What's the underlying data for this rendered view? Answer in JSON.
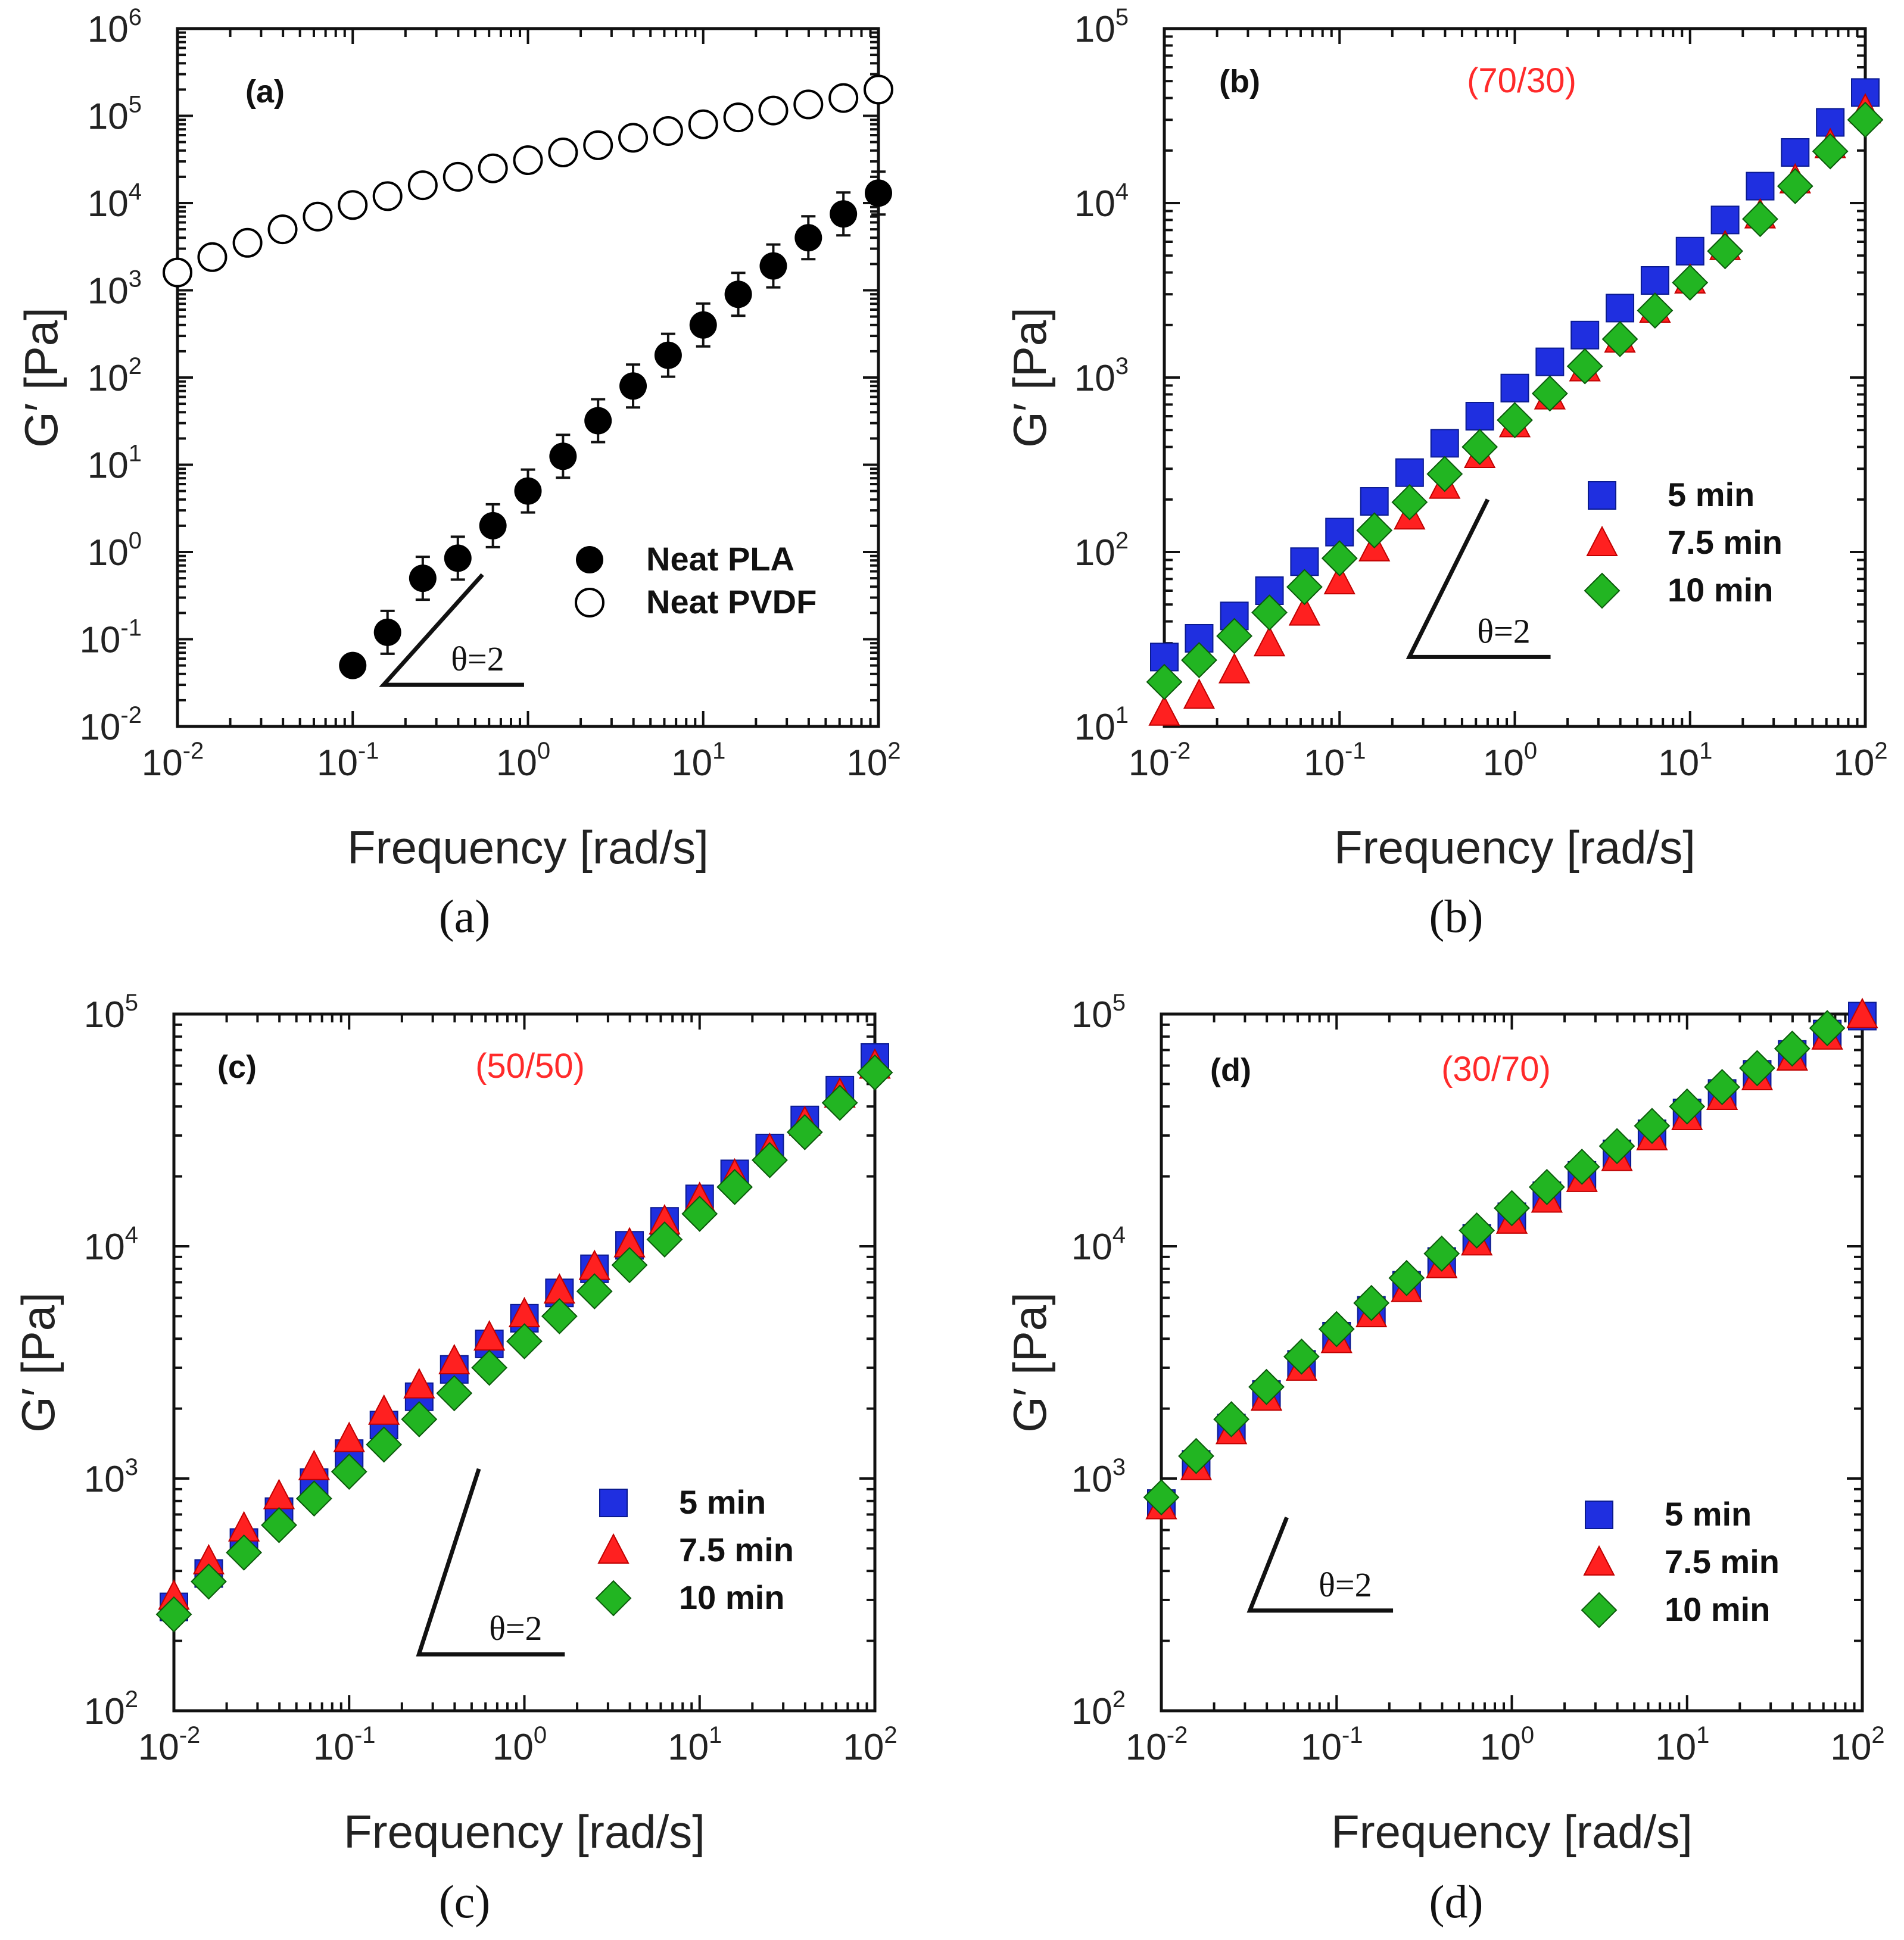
{
  "chart_data": [
    {
      "panel": "a",
      "type": "scatter",
      "panel_tag": "(a)",
      "caption": "(a)",
      "blend_label": "",
      "xlabel": "Frequency [rad/s]",
      "ylabel": "G′ [Pa]",
      "xscale": "log",
      "yscale": "log",
      "xlim": [
        0.01,
        100
      ],
      "ylim": [
        0.01,
        1000000
      ],
      "slope_label": "θ=2",
      "slope_anchor": [
        0.15,
        0.03
      ],
      "slope_top": [
        0.55,
        0.55
      ],
      "slope_end": [
        0.95,
        0.03
      ],
      "legend_placement": "center-right",
      "series": [
        {
          "name": "Neat PLA",
          "marker": "filled-circle",
          "color": "#000000",
          "x": [
            0.1,
            0.158,
            0.251,
            0.398,
            0.631,
            1.0,
            1.585,
            2.512,
            3.981,
            6.31,
            10.0,
            15.85,
            25.12,
            39.81,
            63.1,
            100.0
          ],
          "y": [
            0.05,
            0.12,
            0.5,
            0.85,
            2.0,
            5.0,
            12.5,
            32.0,
            80.0,
            180.0,
            400.0,
            900.0,
            1900.0,
            4000.0,
            7500.0,
            13000.0
          ]
        },
        {
          "name": "Neat PVDF",
          "marker": "open-circle",
          "color": "#000000",
          "x": [
            0.01,
            0.0158,
            0.0251,
            0.0398,
            0.0631,
            0.1,
            0.158,
            0.251,
            0.398,
            0.631,
            1.0,
            1.585,
            2.512,
            3.981,
            6.31,
            10.0,
            15.85,
            25.12,
            39.81,
            63.1,
            100.0
          ],
          "y": [
            1600,
            2400,
            3500,
            5000,
            7000,
            9500,
            12000,
            16000,
            20000,
            25000,
            31000,
            38000,
            46000,
            56000,
            67000,
            80000,
            96000,
            115000,
            135000,
            160000,
            200000
          ]
        }
      ]
    },
    {
      "panel": "b",
      "type": "scatter",
      "panel_tag": "(b)",
      "caption": "(b)",
      "blend_label": "(70/30)",
      "xlabel": "Frequency [rad/s]",
      "ylabel": "G′ [Pa]",
      "xscale": "log",
      "yscale": "log",
      "xlim": [
        0.01,
        100
      ],
      "ylim": [
        10,
        100000
      ],
      "slope_label": "θ=2",
      "slope_anchor": [
        0.25,
        25
      ],
      "slope_top": [
        0.7,
        200
      ],
      "slope_end": [
        1.6,
        25
      ],
      "legend_placement": "center-right",
      "series": [
        {
          "name": "5 min",
          "marker": "square",
          "color": "#1f2fe0",
          "x": [
            0.01,
            0.0158,
            0.0251,
            0.0398,
            0.0631,
            0.1,
            0.158,
            0.251,
            0.398,
            0.631,
            1.0,
            1.585,
            2.512,
            3.981,
            6.31,
            10.0,
            15.85,
            25.12,
            39.81,
            63.1,
            100.0
          ],
          "y": [
            25,
            32,
            43,
            60,
            88,
            130,
            195,
            285,
            420,
            600,
            870,
            1230,
            1750,
            2500,
            3600,
            5300,
            8000,
            12500,
            19500,
            29000,
            43000
          ]
        },
        {
          "name": "7.5 min",
          "marker": "triangle",
          "color": "#ff2020",
          "x": [
            0.01,
            0.0158,
            0.0251,
            0.0398,
            0.0631,
            0.1,
            0.158,
            0.251,
            0.398,
            0.631,
            1.0,
            1.585,
            2.512,
            3.981,
            6.31,
            10.0,
            15.85,
            25.12,
            39.81,
            63.1,
            100.0
          ],
          "y": [
            12,
            15,
            21,
            30,
            45,
            68,
            105,
            160,
            240,
            360,
            540,
            780,
            1130,
            1650,
            2450,
            3600,
            5600,
            8500,
            13500,
            21500,
            34000
          ]
        },
        {
          "name": "10 min",
          "marker": "diamond",
          "color": "#22b522",
          "x": [
            0.01,
            0.0158,
            0.0251,
            0.0398,
            0.0631,
            0.1,
            0.158,
            0.251,
            0.398,
            0.631,
            1.0,
            1.585,
            2.512,
            3.981,
            6.31,
            10.0,
            15.85,
            25.12,
            39.81,
            63.1,
            100.0
          ],
          "y": [
            18,
            24,
            33,
            45,
            63,
            92,
            133,
            193,
            280,
            400,
            570,
            810,
            1160,
            1660,
            2420,
            3500,
            5300,
            8100,
            12500,
            19800,
            30000
          ]
        }
      ]
    },
    {
      "panel": "c",
      "type": "scatter",
      "panel_tag": "(c)",
      "caption": "(c)",
      "blend_label": "(50/50)",
      "xlabel": "Frequency [rad/s]",
      "ylabel": "G′ [Pa]",
      "xscale": "log",
      "yscale": "log",
      "xlim": [
        0.01,
        100
      ],
      "ylim": [
        100,
        100000
      ],
      "slope_label": "θ=2",
      "slope_anchor": [
        0.25,
        175
      ],
      "slope_top": [
        0.55,
        1100
      ],
      "slope_end": [
        1.7,
        175
      ],
      "legend_placement": "center-right",
      "series": [
        {
          "name": "5 min",
          "marker": "square",
          "color": "#1f2fe0",
          "x": [
            0.01,
            0.0158,
            0.0251,
            0.0398,
            0.0631,
            0.1,
            0.158,
            0.251,
            0.398,
            0.631,
            1.0,
            1.585,
            2.512,
            3.981,
            6.31,
            10.0,
            15.85,
            25.12,
            39.81,
            63.1,
            100.0
          ],
          "y": [
            280,
            390,
            530,
            720,
            960,
            1280,
            1700,
            2250,
            2950,
            3800,
            4900,
            6300,
            8000,
            10100,
            12800,
            16000,
            20500,
            26500,
            35000,
            47000,
            65000
          ]
        },
        {
          "name": "7.5 min",
          "marker": "triangle",
          "color": "#ff2020",
          "x": [
            0.01,
            0.0158,
            0.0251,
            0.0398,
            0.0631,
            0.1,
            0.158,
            0.251,
            0.398,
            0.631,
            1.0,
            1.585,
            2.512,
            3.981,
            6.31,
            10.0,
            15.85,
            25.12,
            39.81,
            63.1,
            100.0
          ],
          "y": [
            310,
            440,
            610,
            840,
            1120,
            1480,
            1940,
            2520,
            3200,
            4050,
            5100,
            6450,
            8150,
            10200,
            12800,
            16000,
            20200,
            26000,
            34000,
            45000,
            60000
          ]
        },
        {
          "name": "10 min",
          "marker": "diamond",
          "color": "#22b522",
          "x": [
            0.01,
            0.0158,
            0.0251,
            0.0398,
            0.0631,
            0.1,
            0.158,
            0.251,
            0.398,
            0.631,
            1.0,
            1.585,
            2.512,
            3.981,
            6.31,
            10.0,
            15.85,
            25.12,
            39.81,
            63.1,
            100.0
          ],
          "y": [
            260,
            360,
            480,
            630,
            820,
            1070,
            1400,
            1800,
            2330,
            3000,
            3900,
            5000,
            6400,
            8300,
            10700,
            13800,
            18000,
            23500,
            31000,
            41500,
            56000
          ]
        }
      ]
    },
    {
      "panel": "d",
      "type": "scatter",
      "panel_tag": "(d)",
      "caption": "(d)",
      "blend_label": "(30/70)",
      "xlabel": "Frequency [rad/s]",
      "ylabel": "G′ [Pa]",
      "xscale": "log",
      "yscale": "log",
      "xlim": [
        0.01,
        100
      ],
      "ylim": [
        100,
        100000
      ],
      "slope_label": "θ=2",
      "slope_anchor": [
        0.032,
        270
      ],
      "slope_top": [
        0.052,
        680
      ],
      "slope_end": [
        0.21,
        270
      ],
      "legend_placement": "center-right",
      "series": [
        {
          "name": "5 min",
          "marker": "square",
          "color": "#1f2fe0",
          "x": [
            0.01,
            0.0158,
            0.0251,
            0.0398,
            0.0631,
            0.1,
            0.158,
            0.251,
            0.398,
            0.631,
            1.0,
            1.585,
            2.512,
            3.981,
            6.31,
            10.0,
            15.85,
            25.12,
            39.81,
            63.1,
            100.0
          ],
          "y": [
            780,
            1150,
            1650,
            2300,
            3100,
            4100,
            5300,
            6800,
            8600,
            10800,
            13400,
            16500,
            20200,
            25000,
            30500,
            37500,
            45500,
            55000,
            67000,
            82000,
            98000
          ]
        },
        {
          "name": "7.5 min",
          "marker": "triangle",
          "color": "#ff2020",
          "x": [
            0.01,
            0.0158,
            0.0251,
            0.0398,
            0.0631,
            0.1,
            0.158,
            0.251,
            0.398,
            0.631,
            1.0,
            1.585,
            2.512,
            3.981,
            6.31,
            10.0,
            15.85,
            25.12,
            39.81,
            63.1,
            100.0
          ],
          "y": [
            760,
            1120,
            1600,
            2230,
            3000,
            3950,
            5100,
            6550,
            8300,
            10400,
            12900,
            15900,
            19500,
            24000,
            29500,
            36000,
            44000,
            53500,
            65000,
            80000,
            99000
          ]
        },
        {
          "name": "10 min",
          "marker": "diamond",
          "color": "#22b522",
          "x": [
            0.01,
            0.0158,
            0.0251,
            0.0398,
            0.0631,
            0.1,
            0.158,
            0.251,
            0.398,
            0.631,
            1.0,
            1.585,
            2.512,
            3.981,
            6.31,
            10.0,
            15.85,
            25.12,
            39.81,
            63.1
          ],
          "y": [
            830,
            1250,
            1800,
            2480,
            3350,
            4400,
            5700,
            7300,
            9300,
            11700,
            14600,
            18000,
            22000,
            27000,
            33000,
            40000,
            48500,
            58500,
            71000,
            87000
          ]
        }
      ]
    }
  ]
}
